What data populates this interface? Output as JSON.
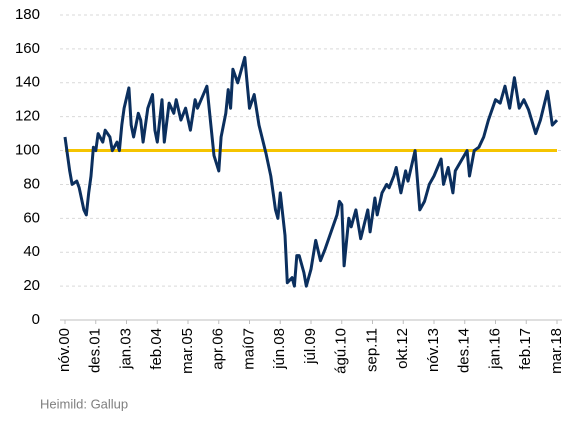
{
  "chart_data": {
    "type": "line",
    "color": "#0b2f5e",
    "hline": {
      "value": 100,
      "color": "#f5c400"
    },
    "source": "Heimild: Gallup",
    "grid": true,
    "ylim": [
      0,
      180
    ],
    "yticks": [
      0,
      20,
      40,
      60,
      80,
      100,
      120,
      140,
      160,
      180
    ],
    "xlim": [
      0,
      208
    ],
    "xticks": [
      {
        "value": 0,
        "label": "nóv.00"
      },
      {
        "value": 13,
        "label": "des.01"
      },
      {
        "value": 26,
        "label": "jan.03"
      },
      {
        "value": 39,
        "label": "feb.04"
      },
      {
        "value": 52,
        "label": "mar.05"
      },
      {
        "value": 65,
        "label": "apr.06"
      },
      {
        "value": 78,
        "label": "maí07"
      },
      {
        "value": 91,
        "label": "jún.08"
      },
      {
        "value": 104,
        "label": "júl.09"
      },
      {
        "value": 117,
        "label": "ágú.10"
      },
      {
        "value": 130,
        "label": "sep.11"
      },
      {
        "value": 143,
        "label": "okt.12"
      },
      {
        "value": 156,
        "label": "nóv.13"
      },
      {
        "value": 169,
        "label": "des.14"
      },
      {
        "value": 182,
        "label": "jan.16"
      },
      {
        "value": 195,
        "label": "feb.17"
      },
      {
        "value": 208,
        "label": "mar.18"
      }
    ],
    "x": [
      0,
      2,
      3,
      5,
      6,
      8,
      9,
      10,
      11,
      12,
      13,
      14,
      16,
      17,
      19,
      20,
      22,
      23,
      24,
      25,
      27,
      28,
      29,
      31,
      32,
      33,
      35,
      37,
      38,
      39,
      41,
      42,
      44,
      46,
      47,
      49,
      51,
      53,
      55,
      56,
      60,
      63,
      65,
      66,
      68,
      69,
      70,
      71,
      73,
      76,
      77,
      78,
      80,
      82,
      85,
      87,
      89,
      90,
      91,
      93,
      94,
      96,
      97,
      98,
      99,
      101,
      102,
      104,
      106,
      108,
      110,
      112,
      115,
      116,
      117,
      118,
      120,
      121,
      123,
      125,
      128,
      129,
      131,
      132,
      134,
      136,
      137,
      139,
      140,
      142,
      144,
      145,
      148,
      150,
      152,
      154,
      156,
      159,
      160,
      162,
      164,
      165,
      170,
      171,
      173,
      175,
      177,
      179,
      182,
      184,
      186,
      188,
      190,
      192,
      194,
      196,
      199,
      201,
      204,
      206,
      208
    ],
    "values": [
      108,
      88,
      80,
      82,
      78,
      65,
      62,
      75,
      85,
      102,
      100,
      110,
      105,
      112,
      108,
      100,
      105,
      100,
      115,
      125,
      137,
      115,
      108,
      122,
      118,
      105,
      125,
      133,
      112,
      105,
      130,
      105,
      128,
      122,
      130,
      118,
      125,
      112,
      130,
      125,
      138,
      97,
      88,
      108,
      122,
      136,
      125,
      148,
      140,
      155,
      140,
      125,
      133,
      115,
      98,
      85,
      65,
      60,
      75,
      50,
      22,
      25,
      20,
      38,
      38,
      28,
      20,
      30,
      47,
      35,
      42,
      50,
      62,
      70,
      68,
      32,
      60,
      55,
      65,
      48,
      65,
      52,
      72,
      62,
      75,
      80,
      78,
      85,
      90,
      75,
      88,
      82,
      100,
      65,
      70,
      80,
      85,
      95,
      80,
      90,
      75,
      88,
      100,
      85,
      100,
      102,
      108,
      118,
      130,
      128,
      138,
      125,
      143,
      125,
      130,
      124,
      110,
      118,
      135,
      115,
      118
    ]
  }
}
